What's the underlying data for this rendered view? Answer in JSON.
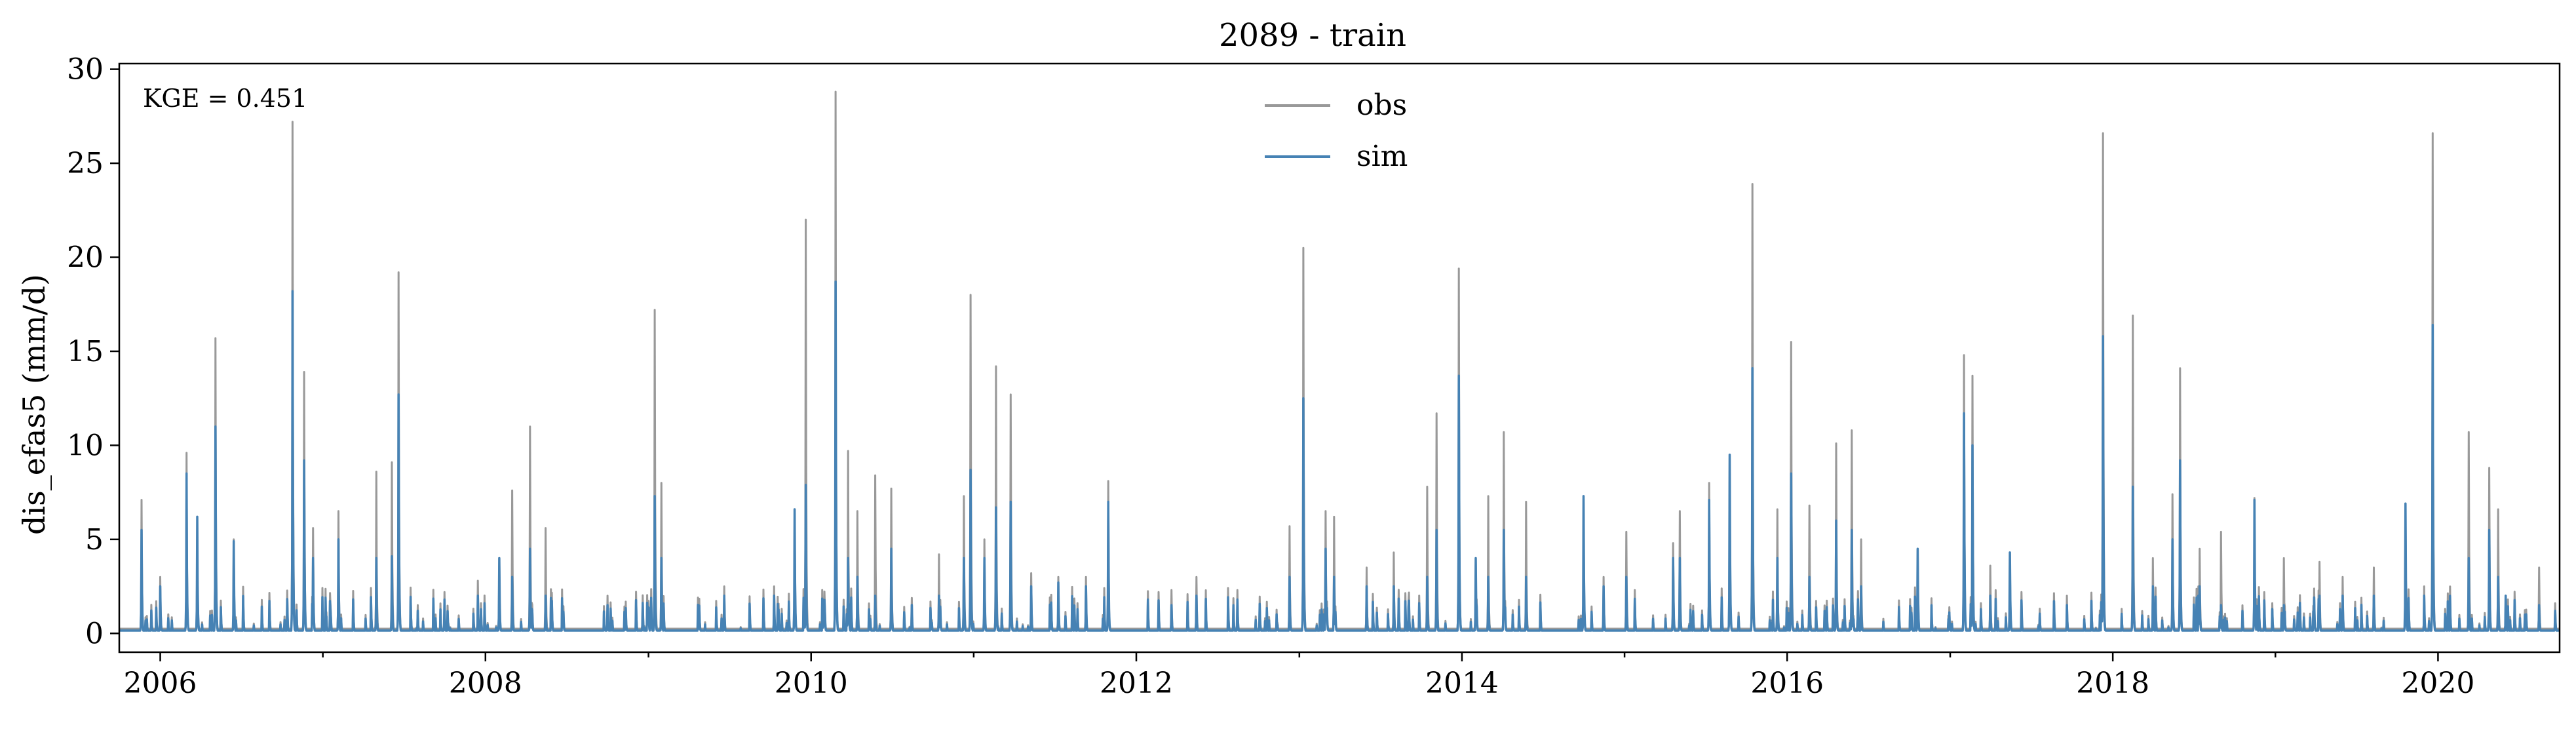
{
  "chart_data": {
    "type": "line",
    "title": "2089 - train",
    "ylabel": "dis_efas5 (mm/d)",
    "xlabel": "",
    "annotation": "KGE = 0.451",
    "xlim": [
      "2005-10-01",
      "2020-09-30"
    ],
    "ylim": [
      -1,
      30.3
    ],
    "yticks": [
      0,
      5,
      10,
      15,
      20,
      25,
      30
    ],
    "xticks": [
      "2006",
      "2008",
      "2010",
      "2012",
      "2014",
      "2016",
      "2018",
      "2020"
    ],
    "legend": {
      "position": "top-center",
      "entries": [
        "obs",
        "sim"
      ]
    },
    "colors": {
      "obs": "#999999",
      "sim": "#4682b4"
    },
    "baseline": {
      "obs": 0.25,
      "sim": 0.15
    },
    "events": [
      [
        "2005-11-20",
        7.1,
        5.5
      ],
      [
        "2006-01-01",
        3.0,
        2.5
      ],
      [
        "2006-03-01",
        9.6,
        8.5
      ],
      [
        "2006-03-25",
        6.2,
        6.2
      ],
      [
        "2006-05-05",
        15.7,
        11.0
      ],
      [
        "2006-06-15",
        5.0,
        4.9
      ],
      [
        "2006-10-25",
        27.2,
        18.2
      ],
      [
        "2006-11-20",
        13.9,
        9.2
      ],
      [
        "2006-12-10",
        5.6,
        4.0
      ],
      [
        "2007-02-05",
        6.5,
        5.0
      ],
      [
        "2007-05-01",
        8.6,
        4.0
      ],
      [
        "2007-06-20",
        19.2,
        12.7
      ],
      [
        "2007-06-05",
        9.1,
        4.1
      ],
      [
        "2007-10-01",
        2.2,
        1.8
      ],
      [
        "2007-12-15",
        2.8,
        2.0
      ],
      [
        "2008-02-01",
        4.0,
        4.0
      ],
      [
        "2008-03-01",
        7.6,
        3.0
      ],
      [
        "2008-04-10",
        11.0,
        4.5
      ],
      [
        "2008-05-15",
        5.6,
        2.0
      ],
      [
        "2008-10-01",
        2.0,
        1.5
      ],
      [
        "2009-01-15",
        17.2,
        7.3
      ],
      [
        "2009-01-30",
        8.0,
        4.0
      ],
      [
        "2009-06-20",
        2.5,
        2.0
      ],
      [
        "2009-10-10",
        2.5,
        2.0
      ],
      [
        "2009-11-25",
        6.6,
        6.6
      ],
      [
        "2009-12-20",
        22.0,
        7.9
      ],
      [
        "2010-02-25",
        28.8,
        18.7
      ],
      [
        "2010-03-25",
        9.7,
        4.0
      ],
      [
        "2010-04-15",
        6.5,
        3.0
      ],
      [
        "2010-05-25",
        8.4,
        2.0
      ],
      [
        "2010-06-30",
        7.7,
        4.5
      ],
      [
        "2010-10-15",
        4.2,
        2.0
      ],
      [
        "2010-12-10",
        7.3,
        4.0
      ],
      [
        "2010-12-25",
        18.0,
        8.7
      ],
      [
        "2011-01-25",
        5.0,
        4.0
      ],
      [
        "2011-02-20",
        14.2,
        6.7
      ],
      [
        "2011-03-25",
        12.7,
        7.0
      ],
      [
        "2011-05-10",
        3.2,
        2.5
      ],
      [
        "2011-07-10",
        3.0,
        2.7
      ],
      [
        "2011-09-10",
        3.0,
        2.5
      ],
      [
        "2011-10-30",
        8.1,
        7.0
      ],
      [
        "2012-03-20",
        2.3,
        1.5
      ],
      [
        "2012-05-15",
        3.0,
        2.0
      ],
      [
        "2012-08-15",
        2.3,
        1.8
      ],
      [
        "2012-12-10",
        5.7,
        3.0
      ],
      [
        "2013-01-10",
        20.5,
        12.5
      ],
      [
        "2013-03-01",
        6.5,
        4.5
      ],
      [
        "2013-03-20",
        6.2,
        3.0
      ],
      [
        "2013-06-01",
        3.5,
        2.5
      ],
      [
        "2013-08-01",
        4.3,
        2.5
      ],
      [
        "2013-10-15",
        7.8,
        3.0
      ],
      [
        "2013-11-05",
        11.7,
        5.5
      ],
      [
        "2013-12-25",
        19.4,
        13.7
      ],
      [
        "2014-02-01",
        4.0,
        4.0
      ],
      [
        "2014-03-01",
        7.3,
        3.0
      ],
      [
        "2014-04-05",
        10.7,
        5.5
      ],
      [
        "2014-05-25",
        7.0,
        3.0
      ],
      [
        "2014-10-01",
        7.3,
        7.3
      ],
      [
        "2014-11-15",
        3.0,
        2.5
      ],
      [
        "2015-01-05",
        5.4,
        3.0
      ],
      [
        "2015-04-20",
        4.8,
        4.0
      ],
      [
        "2015-05-05",
        6.5,
        4.0
      ],
      [
        "2015-07-10",
        8.0,
        7.1
      ],
      [
        "2015-08-25",
        9.5,
        9.5
      ],
      [
        "2015-10-15",
        23.9,
        14.1
      ],
      [
        "2015-12-10",
        6.6,
        4.0
      ],
      [
        "2016-01-10",
        15.5,
        8.5
      ],
      [
        "2016-02-20",
        6.8,
        3.0
      ],
      [
        "2016-04-20",
        10.1,
        6.0
      ],
      [
        "2016-05-25",
        10.8,
        5.5
      ],
      [
        "2016-06-15",
        5.0,
        2.5
      ],
      [
        "2016-10-20",
        4.5,
        4.5
      ],
      [
        "2017-02-01",
        14.8,
        11.7
      ],
      [
        "2017-02-20",
        13.7,
        10.0
      ],
      [
        "2017-04-01",
        3.6,
        2.0
      ],
      [
        "2017-05-15",
        4.3,
        4.3
      ],
      [
        "2017-09-20",
        2.0,
        1.5
      ],
      [
        "2017-12-10",
        26.6,
        15.8
      ],
      [
        "2018-02-15",
        16.9,
        7.8
      ],
      [
        "2018-04-01",
        4.0,
        2.5
      ],
      [
        "2018-05-15",
        7.4,
        5.0
      ],
      [
        "2018-06-01",
        14.1,
        9.2
      ],
      [
        "2018-07-15",
        4.5,
        2.5
      ],
      [
        "2018-09-01",
        5.4,
        1.5
      ],
      [
        "2018-11-15",
        7.2,
        7.1
      ],
      [
        "2019-01-20",
        4.0,
        1.5
      ],
      [
        "2019-04-10",
        3.8,
        2.0
      ],
      [
        "2019-06-01",
        3.0,
        2.0
      ],
      [
        "2019-08-10",
        3.5,
        2.0
      ],
      [
        "2019-10-20",
        6.9,
        6.9
      ],
      [
        "2019-12-01",
        2.5,
        2.0
      ],
      [
        "2019-12-20",
        26.6,
        16.4
      ],
      [
        "2020-03-10",
        10.7,
        4.0
      ],
      [
        "2020-04-25",
        8.8,
        5.5
      ],
      [
        "2020-05-15",
        6.6,
        3.0
      ],
      [
        "2020-06-01",
        2.0,
        2.0
      ],
      [
        "2020-08-15",
        3.5,
        1.5
      ],
      [
        "2020-09-20",
        1.6,
        1.2
      ]
    ]
  }
}
